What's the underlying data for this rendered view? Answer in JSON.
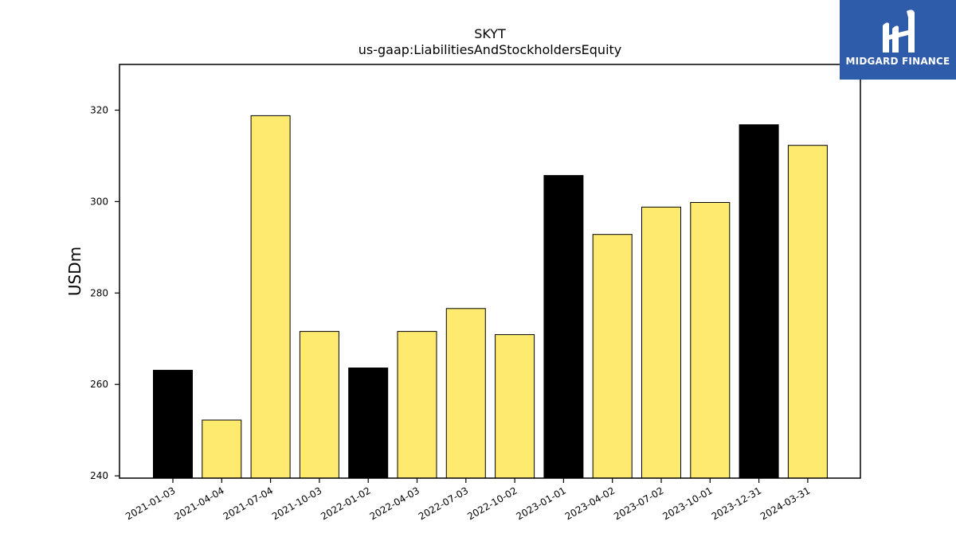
{
  "chart_data": {
    "type": "bar",
    "title": "SKYT",
    "subtitle": "us-gaap:LiabilitiesAndStockholdersEquity",
    "xlabel": "",
    "ylabel": "USDm",
    "ylim": [
      239.5,
      330
    ],
    "yticks": [
      240,
      260,
      280,
      300,
      320
    ],
    "grid": false,
    "categories": [
      "2021-01-03",
      "2021-04-04",
      "2021-07-04",
      "2021-10-03",
      "2022-01-02",
      "2022-04-03",
      "2022-07-03",
      "2022-10-02",
      "2023-01-01",
      "2023-04-02",
      "2023-07-02",
      "2023-10-01",
      "2023-12-31",
      "2024-03-31"
    ],
    "values": [
      263.1,
      252.2,
      318.8,
      271.6,
      263.6,
      271.6,
      276.6,
      270.9,
      305.7,
      292.8,
      298.8,
      299.8,
      316.8,
      312.3
    ],
    "highlight": [
      true,
      false,
      false,
      false,
      true,
      false,
      false,
      false,
      true,
      false,
      false,
      false,
      true,
      false
    ],
    "colors": {
      "highlight": "#000000",
      "normal": "#fdea6f",
      "edge": "#000000"
    }
  },
  "logo": {
    "text": "MIDGARD FINANCE",
    "background": "#2f5bab"
  }
}
